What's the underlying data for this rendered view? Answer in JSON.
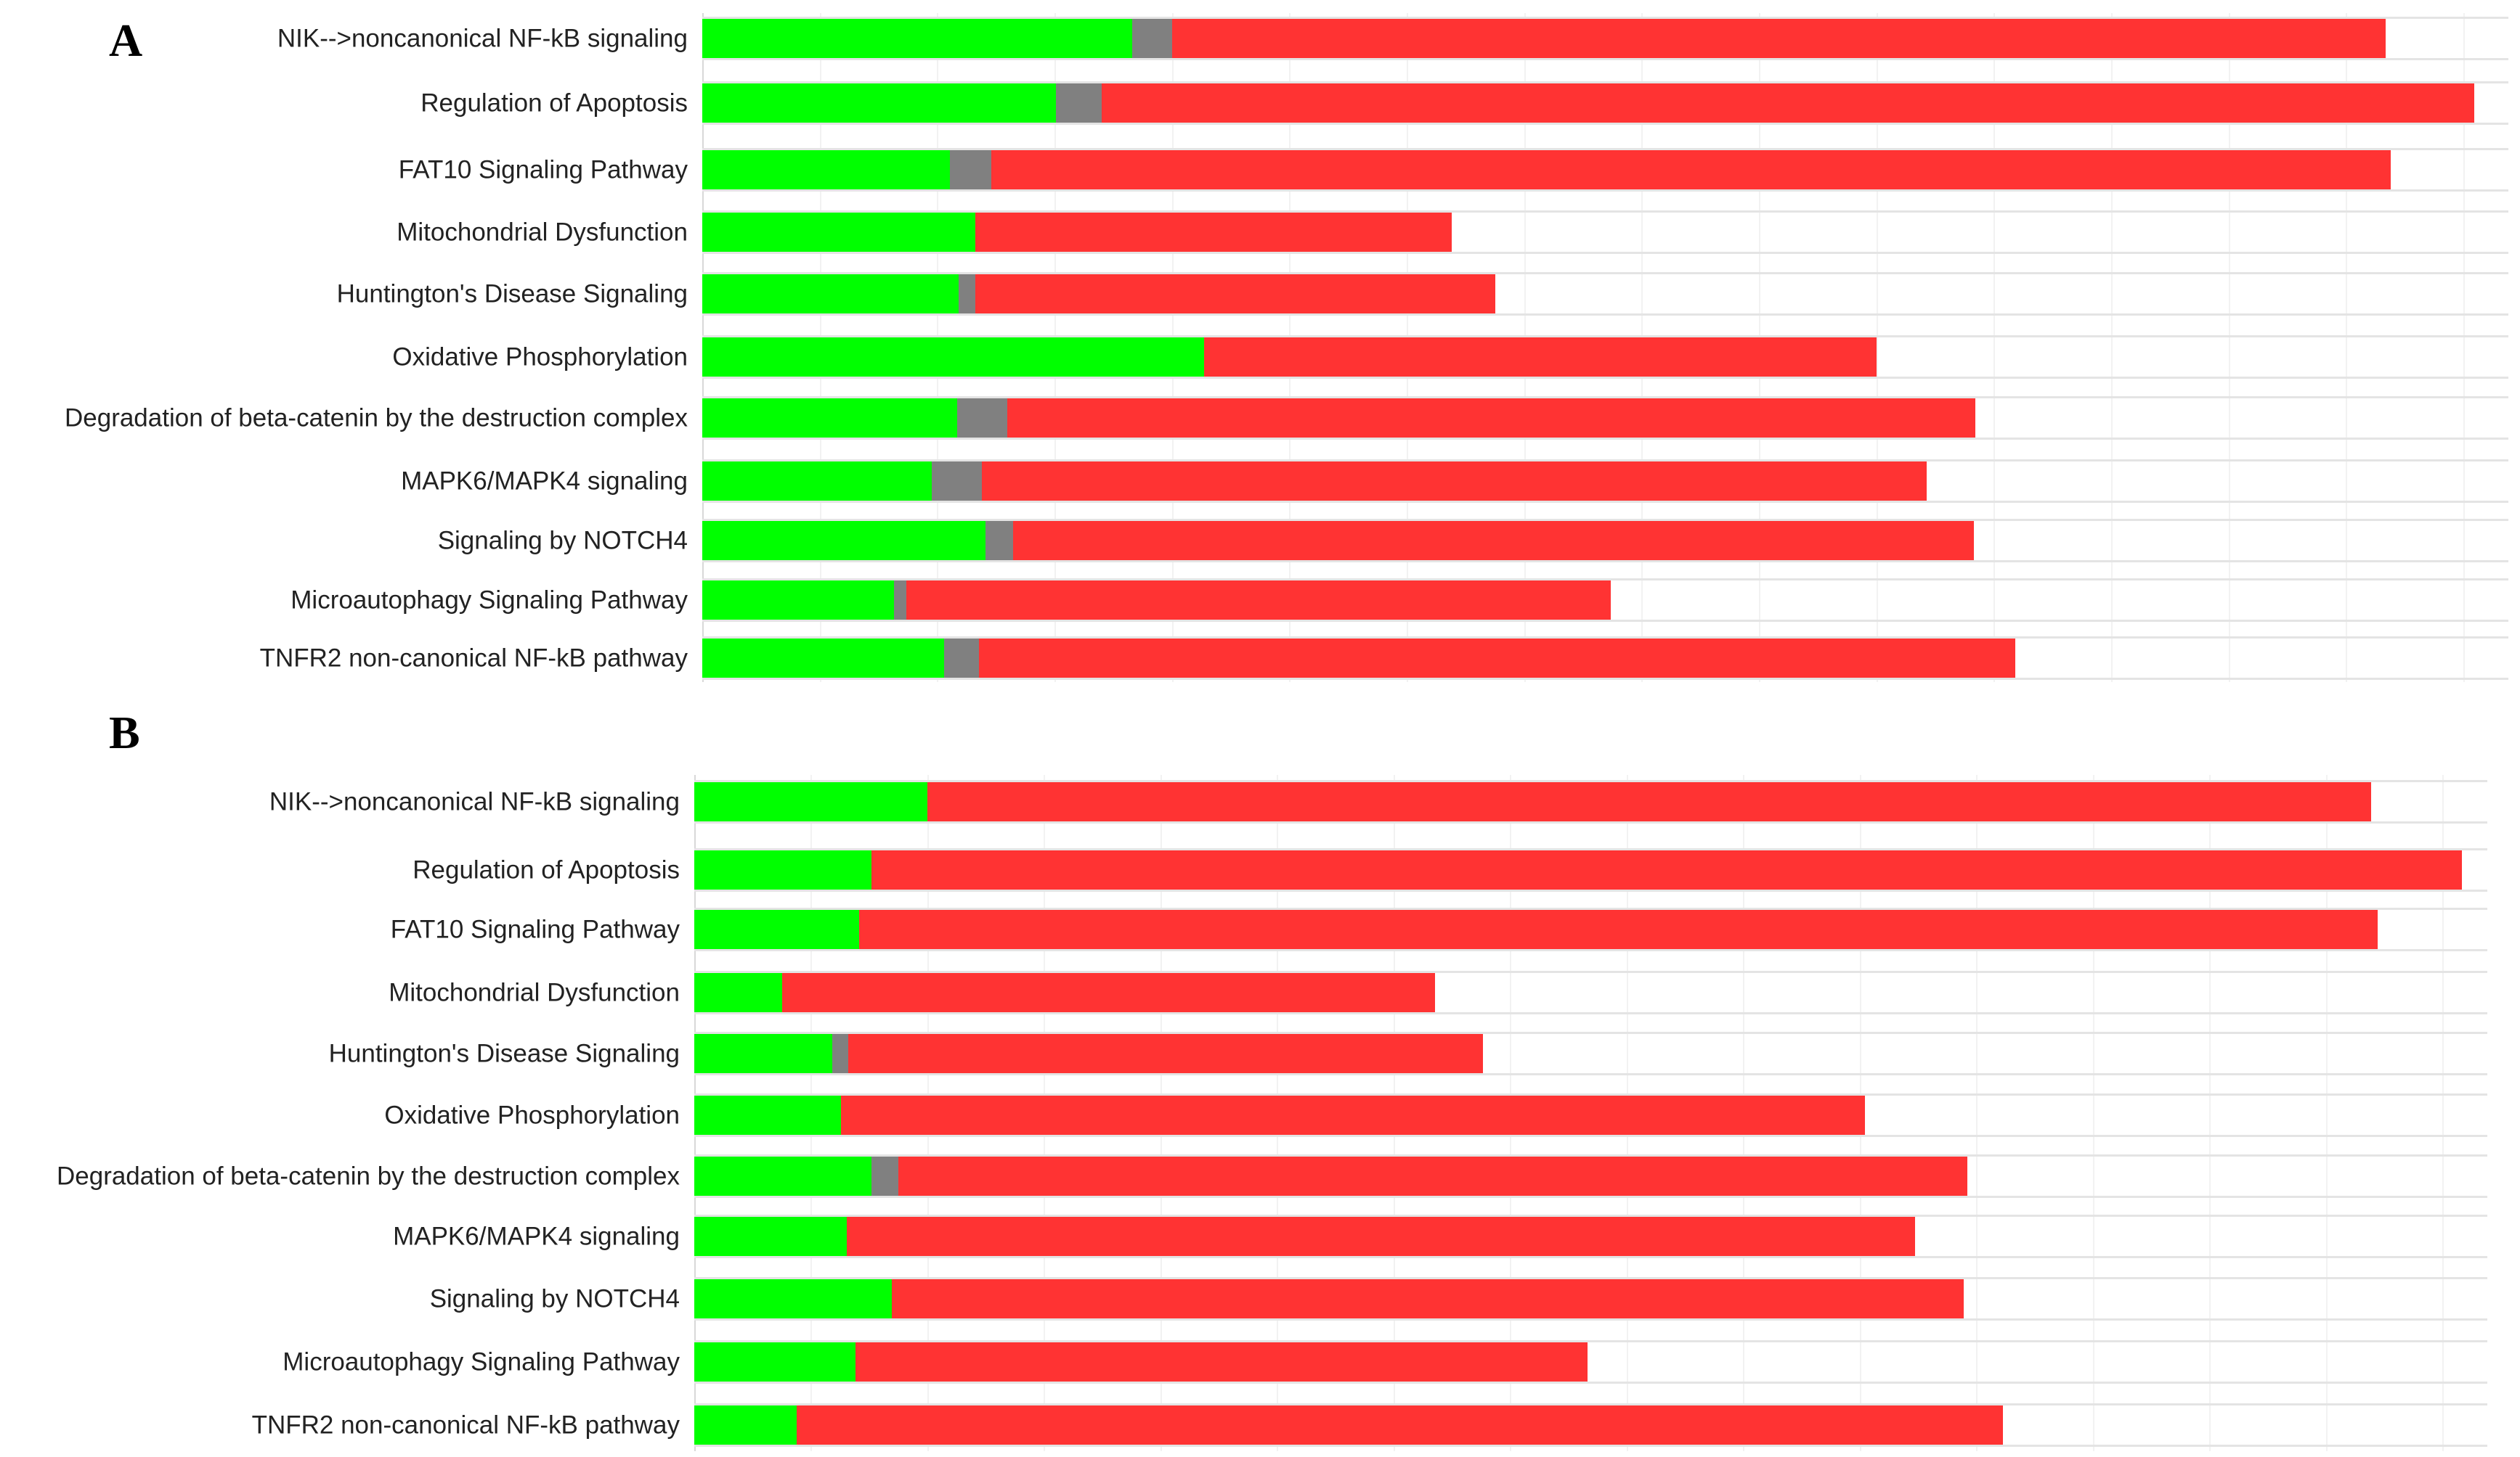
{
  "chart_data": [
    {
      "panel": "A",
      "type": "bar",
      "orientation": "horizontal",
      "stacked": true,
      "categories": [
        "NIK-->noncanonical NF-kB signaling",
        "Regulation of Apoptosis",
        "FAT10 Signaling Pathway",
        "Mitochondrial Dysfunction",
        "Huntington's Disease Signaling",
        "Oxidative Phosphorylation",
        "Degradation of beta-catenin by the destruction complex",
        "MAPK6/MAPK4 signaling",
        "Signaling by NOTCH4",
        "Microautophagy Signaling Pathway",
        "TNFR2 non-canonical NF-kB pathway"
      ],
      "series": [
        {
          "color": "#00ff00",
          "values": [
            23.8,
            19.6,
            13.7,
            15.1,
            14.2,
            27.8,
            14.1,
            12.7,
            15.7,
            10.6,
            13.4
          ]
        },
        {
          "color": "#808080",
          "values": [
            2.2,
            2.5,
            2.3,
            0,
            0.9,
            0,
            2.8,
            2.8,
            1.5,
            0.7,
            1.9
          ]
        },
        {
          "color": "#ff3333",
          "values": [
            67.2,
            76.0,
            77.5,
            26.4,
            28.8,
            37.2,
            53.6,
            52.3,
            53.2,
            39.0,
            57.4
          ]
        }
      ],
      "xlim": [
        0,
        100
      ],
      "grid": true
    },
    {
      "panel": "B",
      "type": "bar",
      "orientation": "horizontal",
      "stacked": true,
      "categories": [
        "NIK-->noncanonical NF-kB signaling",
        "Regulation of Apoptosis",
        "FAT10 Signaling Pathway",
        "Mitochondrial Dysfunction",
        "Huntington's Disease Signaling",
        "Oxidative Phosphorylation",
        "Degradation of beta-catenin by the destruction complex",
        "MAPK6/MAPK4 signaling",
        "Signaling by NOTCH4",
        "Microautophagy Signaling Pathway",
        "TNFR2 non-canonical NF-kB pathway"
      ],
      "series": [
        {
          "color": "#00ff00",
          "values": [
            13.0,
            9.9,
            9.2,
            4.9,
            7.7,
            8.2,
            9.9,
            8.5,
            11.0,
            9.0,
            5.7
          ]
        },
        {
          "color": "#808080",
          "values": [
            0,
            0,
            0,
            0,
            0.9,
            0,
            1.5,
            0,
            0,
            0,
            0
          ]
        },
        {
          "color": "#ff3333",
          "values": [
            80.5,
            88.7,
            84.7,
            36.4,
            35.4,
            57.1,
            59.6,
            59.6,
            59.8,
            40.8,
            67.3
          ]
        }
      ],
      "xlim": [
        0,
        100
      ],
      "grid": true
    }
  ]
}
